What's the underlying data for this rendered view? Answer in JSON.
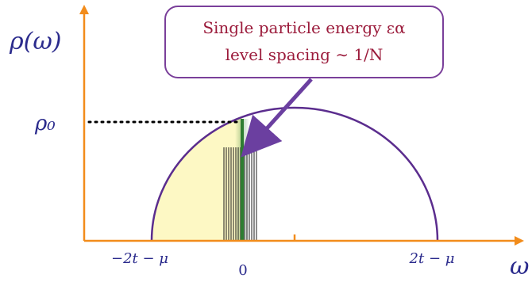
{
  "axes": {
    "y_label": "ρ(ω)",
    "x_label": "ω",
    "rho0_label": "ρ₀",
    "color": "#f28c1b"
  },
  "ticks": {
    "left_edge": "−2t − μ",
    "zero": "0",
    "right_edge": "2t − μ"
  },
  "callout": {
    "line1": "Single particle energy εα",
    "line2": "level spacing ∼ 1/N",
    "text_color": "#9b1b3b",
    "border_color": "#7a3f9a"
  },
  "colors": {
    "semicircle": "#5b2d8e",
    "fill": "#fdf8c4",
    "level_line": "#2e7d32",
    "levels": "#1a1a1a",
    "arrow": "#6b3fa0",
    "dotted": "#000000"
  }
}
